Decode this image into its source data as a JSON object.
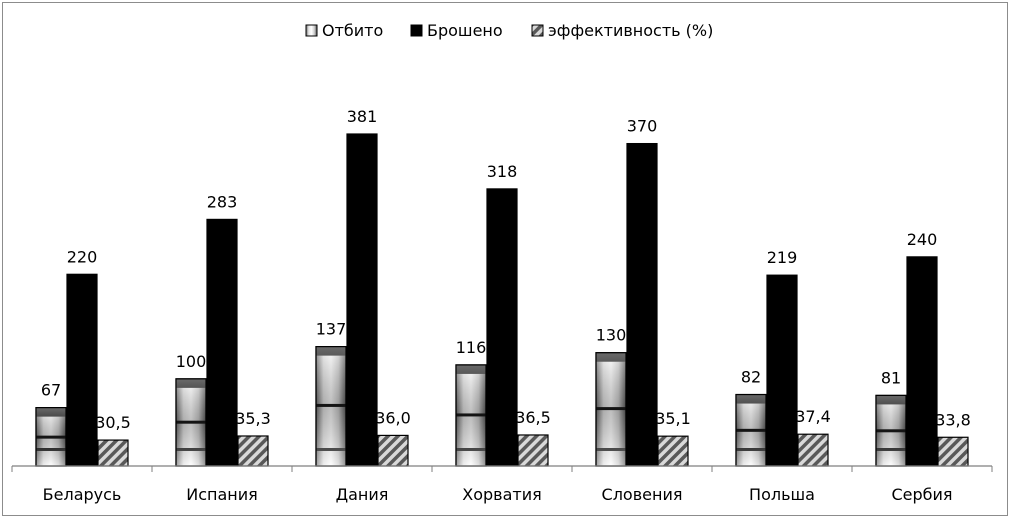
{
  "chart_data": {
    "type": "bar",
    "title": "",
    "xlabel": "",
    "ylabel": "",
    "categories": [
      "Беларусь",
      "Испания",
      "Дания",
      "Хорватия",
      "Словения",
      "Польша",
      "Сербия"
    ],
    "series": [
      {
        "name": "Отбито",
        "values": [
          67,
          100,
          137,
          116,
          130,
          82,
          81
        ],
        "labels": [
          "67",
          "100",
          "137",
          "116",
          "130",
          "82",
          "81"
        ]
      },
      {
        "name": "Брошено",
        "values": [
          220,
          283,
          381,
          318,
          370,
          219,
          240
        ],
        "labels": [
          "220",
          "283",
          "381",
          "318",
          "370",
          "219",
          "240"
        ]
      },
      {
        "name": "эффективность (%)",
        "values": [
          30.5,
          35.3,
          36.0,
          36.5,
          35.1,
          37.4,
          33.8
        ],
        "labels": [
          "30,5",
          "35,3",
          "36,0",
          "36,5",
          "35,1",
          "37,4",
          "33,8"
        ]
      }
    ],
    "ylim": [
      0,
      400
    ],
    "grid": false,
    "y_axis_visible": false,
    "legend_position": "top-center",
    "colors": {
      "Отбито": "gradient-banded",
      "Брошено": "#000000",
      "эффективность (%)": "hatched"
    }
  }
}
